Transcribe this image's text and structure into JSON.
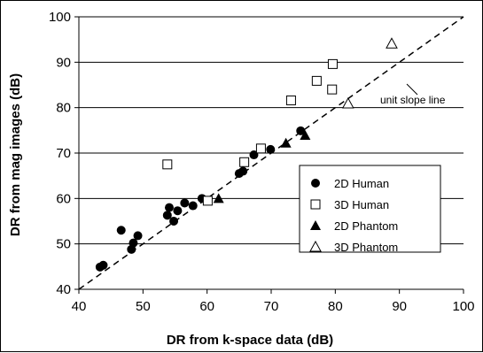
{
  "chart_data": {
    "type": "scatter",
    "xlabel": "DR from k-space data (dB)",
    "ylabel": "DR from mag images (dB)",
    "xlim": [
      40,
      100
    ],
    "ylim": [
      40,
      100
    ],
    "xticks": [
      "40",
      "50",
      "60",
      "70",
      "80",
      "90",
      "100"
    ],
    "yticks": [
      "40",
      "50",
      "60",
      "70",
      "80",
      "90",
      "100"
    ],
    "grid": "horizontal",
    "legend_position": "right",
    "reference_line": {
      "label": "unit slope line",
      "style": "dashed",
      "from": [
        40,
        40
      ],
      "to": [
        100,
        100
      ]
    },
    "series": [
      {
        "name": "2D Human",
        "marker": "filled-circle",
        "points": [
          [
            43.3,
            44.9
          ],
          [
            43.8,
            45.3
          ],
          [
            46.6,
            53.0
          ],
          [
            48.2,
            48.8
          ],
          [
            48.5,
            50.2
          ],
          [
            49.2,
            51.8
          ],
          [
            53.8,
            56.3
          ],
          [
            54.1,
            58.0
          ],
          [
            54.8,
            55.0
          ],
          [
            55.4,
            57.3
          ],
          [
            56.5,
            59.0
          ],
          [
            57.8,
            58.4
          ],
          [
            59.2,
            60.0
          ],
          [
            65.0,
            65.5
          ],
          [
            65.6,
            66.0
          ],
          [
            67.3,
            69.6
          ],
          [
            69.9,
            70.8
          ],
          [
            74.6,
            74.9
          ]
        ]
      },
      {
        "name": "3D Human",
        "marker": "open-square",
        "points": [
          [
            53.8,
            67.5
          ],
          [
            60.1,
            59.5
          ],
          [
            65.8,
            68.0
          ],
          [
            68.4,
            71.0
          ],
          [
            73.1,
            81.6
          ],
          [
            77.1,
            85.9
          ],
          [
            79.5,
            84.0
          ],
          [
            79.6,
            89.6
          ]
        ]
      },
      {
        "name": "2D Phantom",
        "marker": "filled-triangle",
        "points": [
          [
            61.8,
            60.0
          ],
          [
            72.3,
            72.2
          ],
          [
            75.3,
            73.9
          ]
        ]
      },
      {
        "name": "3D Phantom",
        "marker": "open-triangle",
        "points": [
          [
            82.0,
            80.9
          ],
          [
            88.8,
            94.1
          ]
        ]
      }
    ]
  }
}
